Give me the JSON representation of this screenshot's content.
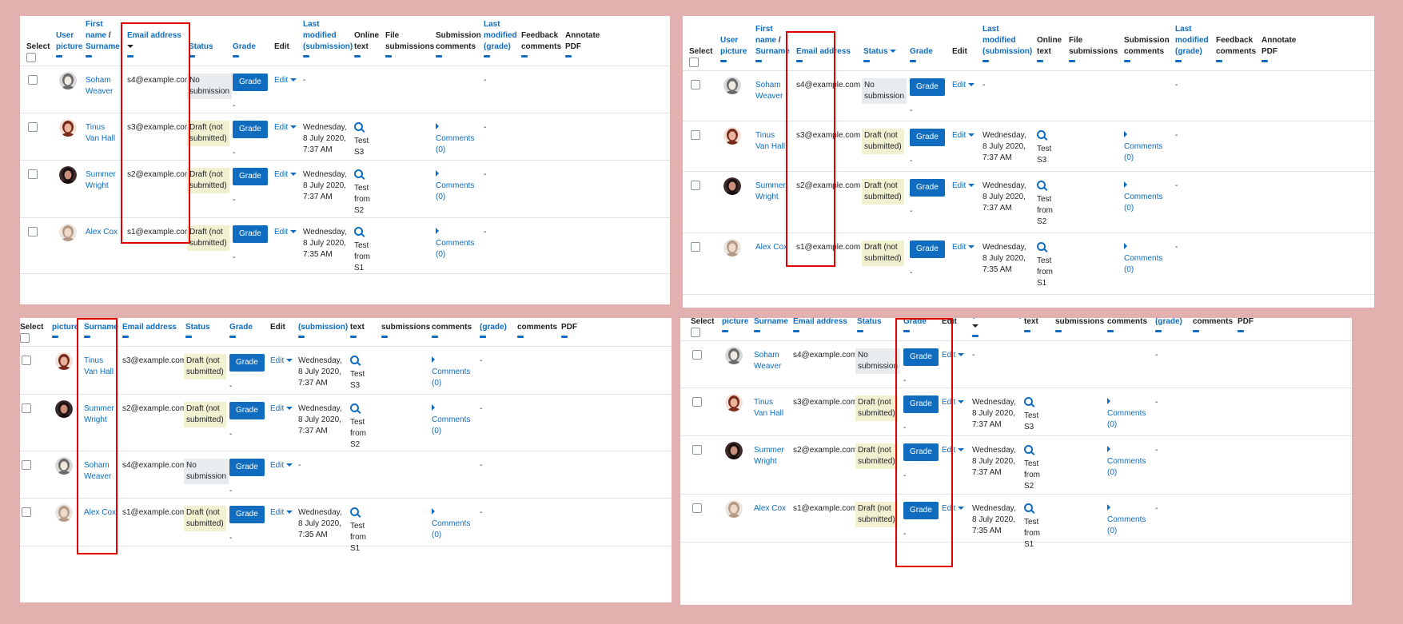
{
  "header": {
    "select": "Select",
    "user_picture": [
      "User",
      "picture"
    ],
    "first_name": "First",
    "name_word": "name",
    "surname": "Surname",
    "email": "Email address",
    "status": "Status",
    "grade": "Grade",
    "edit": "Edit",
    "last_modified_sub": [
      "Last",
      "modified",
      "(submission)"
    ],
    "online_text": [
      "Online",
      "text"
    ],
    "file_submissions": [
      "File",
      "submissions"
    ],
    "submission_comments": [
      "Submission",
      "comments"
    ],
    "last_modified_grade": [
      "Last",
      "modified",
      "(grade)"
    ],
    "feedback_comments": [
      "Feedback",
      "comments"
    ],
    "annotate_pdf": [
      "Annotate",
      "PDF"
    ]
  },
  "labels": {
    "grade_button": "Grade",
    "edit_menu": "Edit",
    "comments": "Comments",
    "comments_count": "(0)",
    "dash": "-"
  },
  "students": {
    "s4": {
      "first": "Soham",
      "last": "Weaver",
      "email": "s4@example.com",
      "status": [
        "No",
        "submission"
      ],
      "status_type": "none",
      "modified": null,
      "online": null,
      "avatar": "gray"
    },
    "s3": {
      "first": "Tinus",
      "last": "Van Hall",
      "email": "s3@example.com",
      "status": [
        "Draft (not",
        "submitted)"
      ],
      "status_type": "draft",
      "modified": [
        "Wednesday,",
        "8 July 2020,",
        "7:37 AM"
      ],
      "online": [
        "Test",
        "S3"
      ],
      "avatar": "red"
    },
    "s2": {
      "first": "Summer",
      "last": "Wright",
      "email": "s2@example.com",
      "status": [
        "Draft (not",
        "submitted)"
      ],
      "status_type": "draft",
      "modified": [
        "Wednesday,",
        "8 July 2020,",
        "7:37 AM"
      ],
      "online": [
        "Test",
        "from",
        "S2"
      ],
      "avatar": "dark"
    },
    "s1": {
      "first": "Alex",
      "last": "Cox",
      "email": "s1@example.com",
      "status": [
        "Draft (not",
        "submitted)"
      ],
      "status_type": "draft",
      "modified": [
        "Wednesday,",
        "8 July 2020,",
        "7:35 AM"
      ],
      "online": [
        "Test",
        "from",
        "S1"
      ],
      "avatar": "light",
      "name_one_line": "Alex Cox"
    }
  },
  "panels": [
    {
      "id": "p0",
      "order": [
        "s4",
        "s3",
        "s2",
        "s1"
      ],
      "sorted": "email"
    },
    {
      "id": "p1",
      "order": [
        "s4",
        "s3",
        "s2",
        "s1"
      ],
      "sorted": "status"
    },
    {
      "id": "p2",
      "order": [
        "s3",
        "s2",
        "s4",
        "s1"
      ],
      "sorted": "firstname"
    },
    {
      "id": "p3",
      "order": [
        "s4",
        "s3",
        "s2",
        "s1"
      ],
      "sorted": "modified"
    }
  ],
  "colors": {
    "link": "#0f6cbf",
    "highlight": "#e00000",
    "background": "#e3b0b0"
  }
}
